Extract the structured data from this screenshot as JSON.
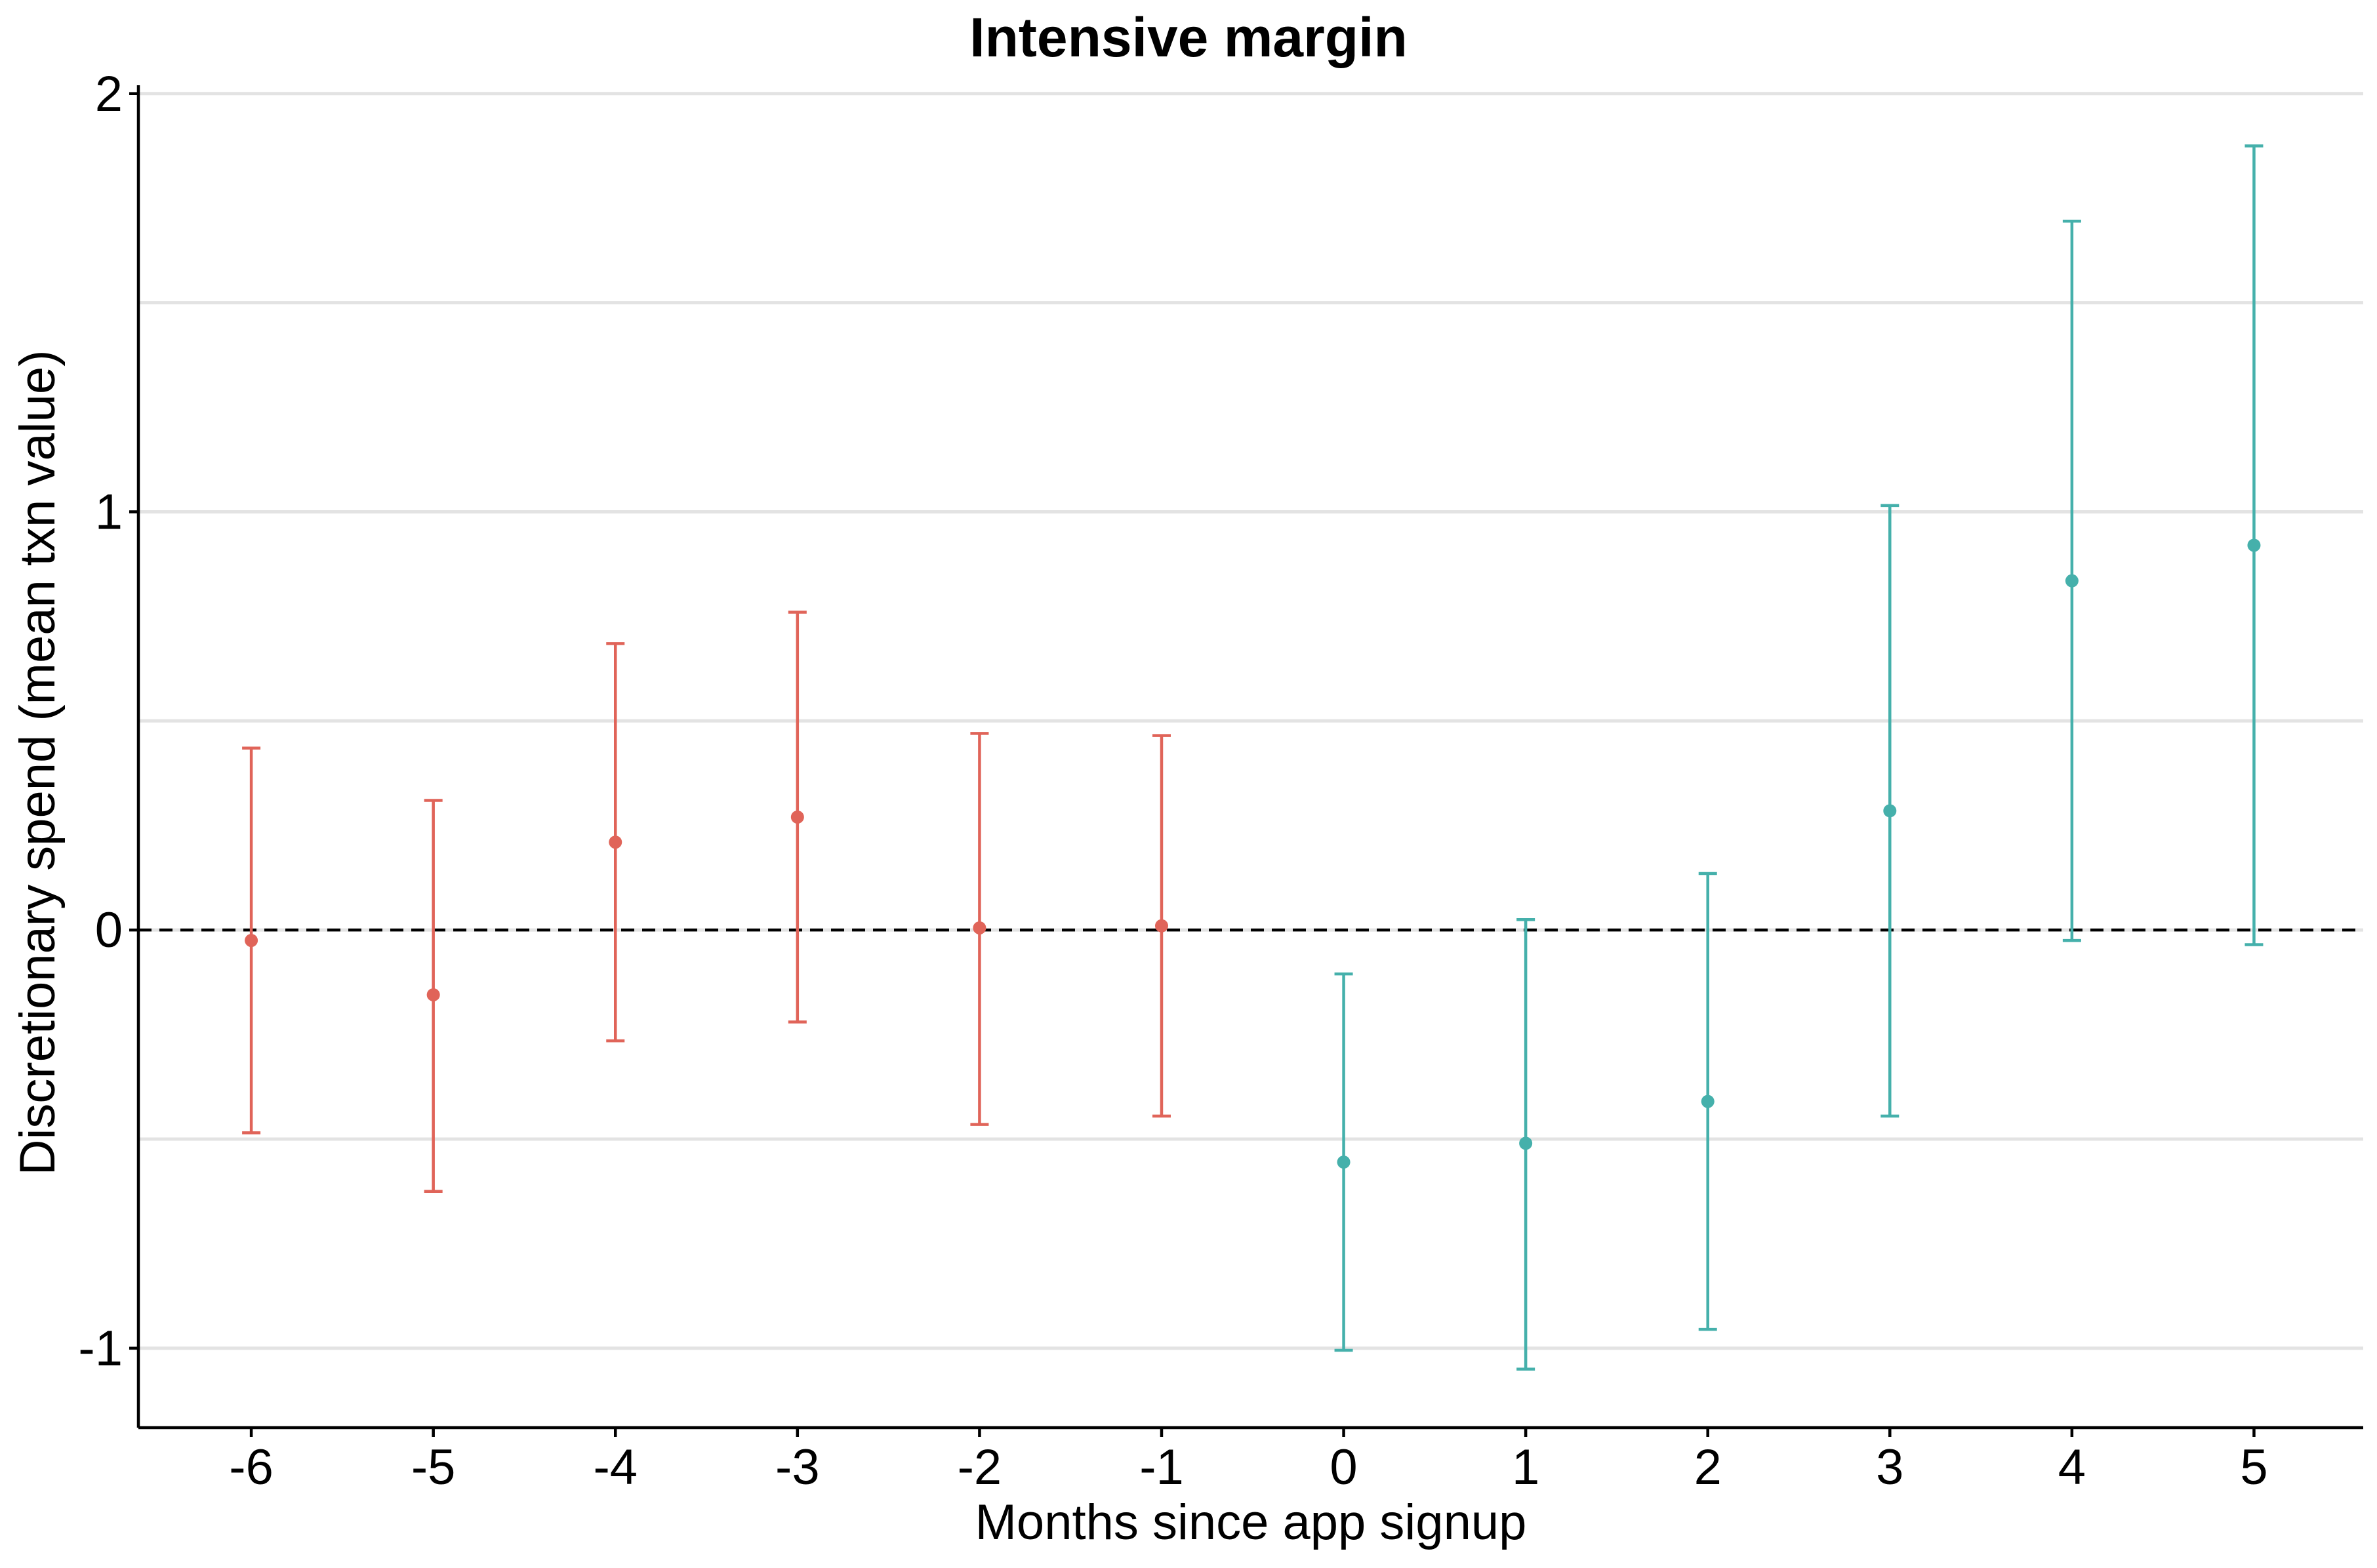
{
  "chart_data": {
    "type": "errorbar",
    "title": "Intensive margin",
    "xlabel": "Months since app signup",
    "ylabel": "Discretionary spend (mean txn value)",
    "x_ticks": [
      "-6",
      "-5",
      "-4",
      "-3",
      "-2",
      "-1",
      "0",
      "1",
      "2",
      "3",
      "4",
      "5"
    ],
    "y_ticks": [
      "-1",
      "0",
      "1",
      "2"
    ],
    "xlim": [
      -6.62,
      5.6
    ],
    "ylim": [
      -1.19,
      2.02
    ],
    "grid": {
      "horizontal": true,
      "vertical": false,
      "minor_horizontal": [
        -0.5,
        0.5,
        1.5
      ]
    },
    "reference_line": {
      "y": 0,
      "style": "dashed"
    },
    "legend": "none",
    "colors": {
      "pre": "#e06459",
      "post": "#45b0ab",
      "grid": "#e3e3e3",
      "reference": "#000000"
    },
    "series": [
      {
        "group": "pre",
        "color": "#e06459",
        "points": [
          {
            "x": -6,
            "y": -0.025,
            "lo": -0.485,
            "hi": 0.435
          },
          {
            "x": -5,
            "y": -0.155,
            "lo": -0.625,
            "hi": 0.31
          },
          {
            "x": -4,
            "y": 0.21,
            "lo": -0.265,
            "hi": 0.685
          },
          {
            "x": -3,
            "y": 0.27,
            "lo": -0.22,
            "hi": 0.76
          },
          {
            "x": -2,
            "y": 0.005,
            "lo": -0.465,
            "hi": 0.47
          },
          {
            "x": -1,
            "y": 0.01,
            "lo": -0.445,
            "hi": 0.465
          }
        ]
      },
      {
        "group": "post",
        "color": "#45b0ab",
        "points": [
          {
            "x": 0,
            "y": -0.555,
            "lo": -1.005,
            "hi": -0.105
          },
          {
            "x": 1,
            "y": -0.51,
            "lo": -1.05,
            "hi": 0.025
          },
          {
            "x": 2,
            "y": -0.41,
            "lo": -0.955,
            "hi": 0.135
          },
          {
            "x": 3,
            "y": 0.285,
            "lo": -0.445,
            "hi": 1.015
          },
          {
            "x": 4,
            "y": 0.835,
            "lo": -0.025,
            "hi": 1.695
          },
          {
            "x": 5,
            "y": 0.92,
            "lo": -0.035,
            "hi": 1.875
          }
        ]
      }
    ]
  }
}
